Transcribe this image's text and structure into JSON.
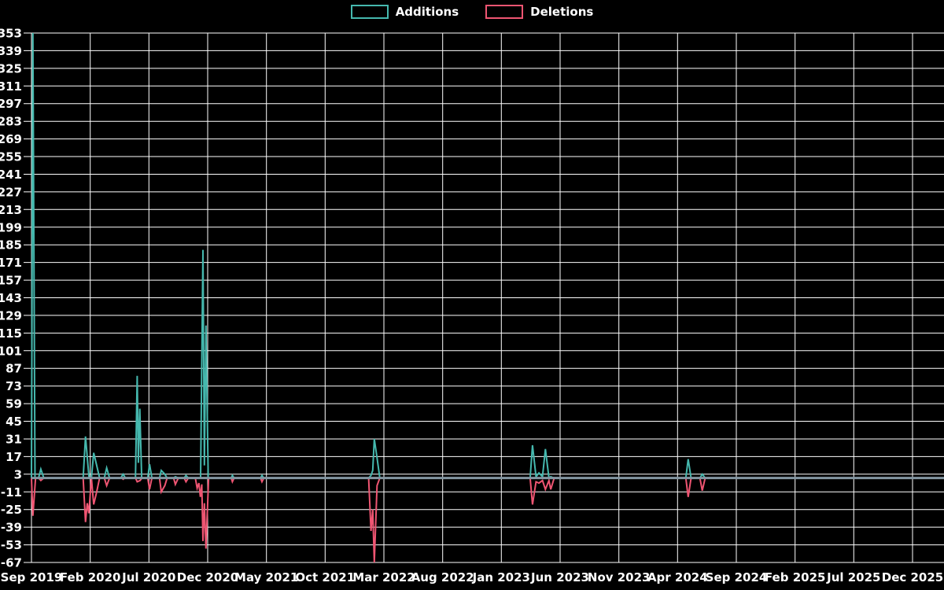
{
  "page": {
    "background": "#000000",
    "text_color": "#ffffff"
  },
  "legend": {
    "position": "top-center",
    "items": [
      {
        "label": "Additions",
        "color": "#45b8ae"
      },
      {
        "label": "Deletions",
        "color": "#ef5572"
      }
    ]
  },
  "chart_data": {
    "type": "line",
    "title": "",
    "xlabel": "",
    "ylabel": "",
    "grid": true,
    "grid_color": "#ffffff",
    "background_color": "#000000",
    "text_color": "#ffffff",
    "zero_line_color": "#8396a2",
    "legend_position": "top-center",
    "x_axis": {
      "start": "Sep 2019",
      "end": "Dec 2025",
      "months_between_ticks": 5,
      "tick_labels": [
        "Sep 2019",
        "Feb 2020",
        "Jul 2020",
        "Dec 2020",
        "May 2021",
        "Oct 2021",
        "Mar 2022",
        "Aug 2022",
        "Jan 2023",
        "Jun 2023",
        "Nov 2023",
        "Apr 2024",
        "Sep 2024",
        "Feb 2025",
        "Jul 2025",
        "Dec 2025"
      ]
    },
    "y_axis": {
      "min": -67,
      "max": 353,
      "tick_step": 14,
      "tick_labels": [
        353,
        339,
        325,
        311,
        297,
        283,
        269,
        255,
        241,
        227,
        213,
        199,
        185,
        171,
        157,
        143,
        129,
        115,
        101,
        87,
        73,
        59,
        45,
        31,
        17,
        3,
        -11,
        -25,
        -39,
        -53,
        -67
      ]
    },
    "series": [
      {
        "name": "Additions",
        "color": "#45b8ae",
        "points_month_value": [
          [
            0.0,
            0
          ],
          [
            0.12,
            353
          ],
          [
            0.3,
            0
          ],
          [
            0.6,
            0
          ],
          [
            0.8,
            7
          ],
          [
            1.05,
            0
          ],
          [
            4.4,
            0
          ],
          [
            4.6,
            33
          ],
          [
            4.9,
            0
          ],
          [
            5.1,
            0
          ],
          [
            5.3,
            20
          ],
          [
            5.55,
            10
          ],
          [
            5.8,
            0
          ],
          [
            6.2,
            0
          ],
          [
            6.4,
            8
          ],
          [
            6.65,
            0
          ],
          [
            7.6,
            0
          ],
          [
            7.8,
            3
          ],
          [
            8.0,
            0
          ],
          [
            8.85,
            0
          ],
          [
            9.0,
            81
          ],
          [
            9.1,
            12
          ],
          [
            9.22,
            55
          ],
          [
            9.38,
            0
          ],
          [
            9.9,
            0
          ],
          [
            10.05,
            11
          ],
          [
            10.25,
            0
          ],
          [
            10.9,
            0
          ],
          [
            11.05,
            6
          ],
          [
            11.35,
            3
          ],
          [
            11.55,
            0
          ],
          [
            12.1,
            0
          ],
          [
            12.25,
            1
          ],
          [
            12.5,
            0
          ],
          [
            13.0,
            0
          ],
          [
            13.15,
            2
          ],
          [
            13.35,
            0
          ],
          [
            14.4,
            0
          ],
          [
            14.6,
            181
          ],
          [
            14.72,
            10
          ],
          [
            14.85,
            121
          ],
          [
            15.05,
            0
          ],
          [
            17.0,
            0
          ],
          [
            17.1,
            2
          ],
          [
            17.25,
            0
          ],
          [
            19.5,
            0
          ],
          [
            19.62,
            2
          ],
          [
            19.78,
            0
          ],
          [
            28.7,
            0
          ],
          [
            28.9,
            2
          ],
          [
            29.05,
            6
          ],
          [
            29.18,
            31
          ],
          [
            29.42,
            16
          ],
          [
            29.65,
            0
          ],
          [
            42.45,
            0
          ],
          [
            42.65,
            26
          ],
          [
            42.95,
            1
          ],
          [
            43.2,
            4
          ],
          [
            43.5,
            1
          ],
          [
            43.75,
            23
          ],
          [
            44.05,
            0
          ],
          [
            44.2,
            1
          ],
          [
            44.45,
            0
          ],
          [
            55.7,
            0
          ],
          [
            55.9,
            15
          ],
          [
            56.15,
            0
          ],
          [
            56.9,
            0
          ],
          [
            57.1,
            3
          ],
          [
            57.35,
            0
          ],
          [
            77.7,
            0
          ]
        ]
      },
      {
        "name": "Deletions",
        "color": "#ef5572",
        "points_month_value": [
          [
            0.0,
            0
          ],
          [
            0.12,
            -30
          ],
          [
            0.35,
            0
          ],
          [
            0.6,
            0
          ],
          [
            0.8,
            -2
          ],
          [
            1.05,
            0
          ],
          [
            4.4,
            0
          ],
          [
            4.6,
            -35
          ],
          [
            4.75,
            -20
          ],
          [
            4.88,
            -28
          ],
          [
            5.1,
            0
          ],
          [
            5.3,
            -21
          ],
          [
            5.55,
            -11
          ],
          [
            5.8,
            0
          ],
          [
            6.2,
            0
          ],
          [
            6.4,
            -6
          ],
          [
            6.65,
            0
          ],
          [
            7.7,
            0
          ],
          [
            7.8,
            -1
          ],
          [
            7.95,
            0
          ],
          [
            8.85,
            0
          ],
          [
            9.0,
            -3
          ],
          [
            9.25,
            -2
          ],
          [
            9.4,
            0
          ],
          [
            9.9,
            0
          ],
          [
            10.05,
            -9
          ],
          [
            10.25,
            0
          ],
          [
            10.9,
            0
          ],
          [
            11.05,
            -11
          ],
          [
            11.35,
            -6
          ],
          [
            11.55,
            0
          ],
          [
            12.1,
            0
          ],
          [
            12.25,
            -5
          ],
          [
            12.5,
            0
          ],
          [
            13.0,
            0
          ],
          [
            13.15,
            -3
          ],
          [
            13.35,
            0
          ],
          [
            13.95,
            0
          ],
          [
            14.1,
            -8
          ],
          [
            14.25,
            -4
          ],
          [
            14.38,
            -15
          ],
          [
            14.5,
            -5
          ],
          [
            14.6,
            -50
          ],
          [
            14.72,
            -20
          ],
          [
            14.85,
            -56
          ],
          [
            15.08,
            0
          ],
          [
            17.0,
            0
          ],
          [
            17.1,
            -3
          ],
          [
            17.25,
            0
          ],
          [
            19.5,
            0
          ],
          [
            19.62,
            -3
          ],
          [
            19.78,
            0
          ],
          [
            28.7,
            0
          ],
          [
            28.9,
            -42
          ],
          [
            29.05,
            -25
          ],
          [
            29.18,
            -67
          ],
          [
            29.42,
            -6
          ],
          [
            29.65,
            0
          ],
          [
            42.45,
            0
          ],
          [
            42.65,
            -21
          ],
          [
            42.95,
            -3
          ],
          [
            43.2,
            -4
          ],
          [
            43.5,
            -2
          ],
          [
            43.75,
            -9
          ],
          [
            44.05,
            -2
          ],
          [
            44.2,
            -9
          ],
          [
            44.5,
            0
          ],
          [
            55.7,
            0
          ],
          [
            55.9,
            -15
          ],
          [
            56.15,
            0
          ],
          [
            56.9,
            0
          ],
          [
            57.1,
            -10
          ],
          [
            57.35,
            0
          ],
          [
            77.7,
            0
          ]
        ]
      }
    ]
  }
}
